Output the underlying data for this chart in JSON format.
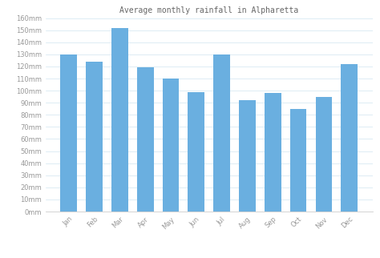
{
  "title": "Average monthly rainfall in Alpharetta",
  "months": [
    "Jan",
    "Feb",
    "Mar",
    "Apr",
    "May",
    "Jun",
    "Jul",
    "Aug",
    "Sep",
    "Oct",
    "Nov",
    "Dec"
  ],
  "values": [
    130,
    124,
    152,
    119,
    110,
    99,
    130,
    92,
    98,
    85,
    95,
    122
  ],
  "bar_color": "#6aafe0",
  "ylim": [
    0,
    160
  ],
  "ytick_step": 10,
  "background_color": "#ffffff",
  "grid_color": "#d0e4f0",
  "title_fontsize": 7,
  "tick_fontsize": 6,
  "ylabel_suffix": "mm",
  "title_color": "#666666",
  "tick_color": "#999999"
}
